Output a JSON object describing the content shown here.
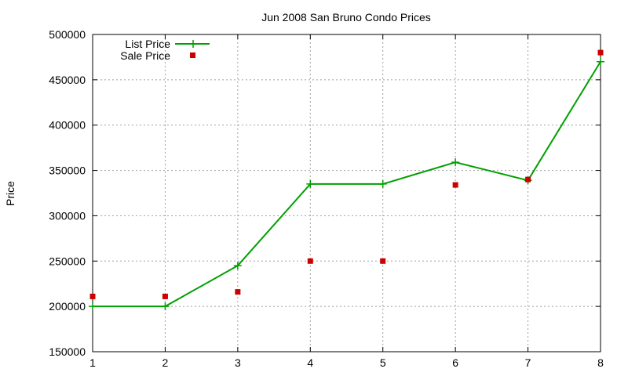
{
  "chart_data": {
    "type": "line",
    "title": "Jun 2008 San Bruno Condo Prices",
    "xlabel": "",
    "ylabel": "Price",
    "x": [
      1,
      2,
      3,
      4,
      5,
      6,
      7,
      8
    ],
    "xlim": [
      1,
      8
    ],
    "ylim": [
      150000,
      500000
    ],
    "xticks": [
      "1",
      "2",
      "3",
      "4",
      "5",
      "6",
      "7",
      "8"
    ],
    "yticks": [
      "150000",
      "200000",
      "250000",
      "300000",
      "350000",
      "400000",
      "450000",
      "500000"
    ],
    "grid": true,
    "legend_position": "top-left",
    "series": [
      {
        "name": "List Price",
        "style": "line-plus",
        "color": "#00a000",
        "values": [
          200000,
          200000,
          245000,
          335000,
          335000,
          359000,
          339000,
          470000
        ]
      },
      {
        "name": "Sale Price",
        "style": "square-points",
        "color": "#cc0000",
        "values": [
          211000,
          211000,
          216000,
          250000,
          250000,
          334000,
          340000,
          480000
        ]
      }
    ]
  }
}
